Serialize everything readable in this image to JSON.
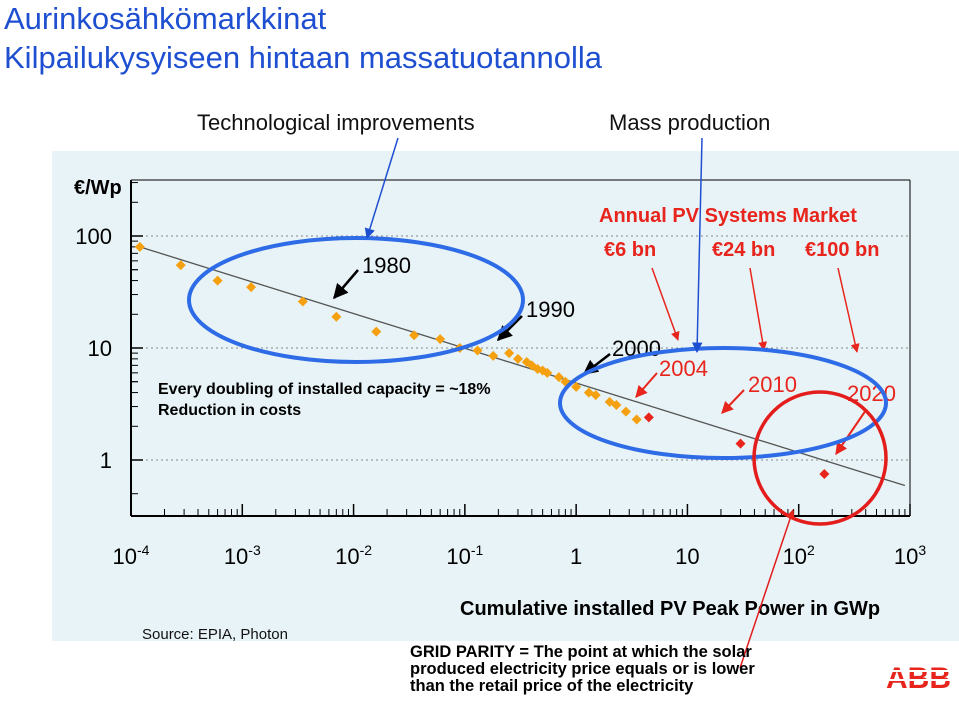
{
  "slide": {
    "title_line1": "Aurinkosähkömarkkinat",
    "title_line2": "Kilpailukysyiseen hintaan massatuotannolla",
    "callout_left": "Technological improvements",
    "callout_right": "Mass production",
    "source": "Source: EPIA, Photon",
    "grid_parity": [
      "GRID PARITY = The point at which the solar",
      "produced electricity price equals or is lower",
      "than the retail price of the electricity"
    ],
    "logo_text": "ABB"
  },
  "chart_data": {
    "type": "scatter",
    "ylabel": "€/Wp",
    "xlabel": "Cumulative installed PV Peak Power in GWp",
    "x_scale": "log",
    "y_scale": "log",
    "xlim": [
      0.0001,
      1000
    ],
    "ylim": [
      0.4,
      200
    ],
    "x_ticks": [
      "10-4",
      "10-3",
      "10-2",
      "10-1",
      "1",
      "10",
      "102",
      "103"
    ],
    "y_ticks": [
      "100",
      "10",
      "1"
    ],
    "series": [
      {
        "values": [
          {
            "x": 0.00012,
            "y": 80
          },
          {
            "x": 0.00028,
            "y": 55
          },
          {
            "x": 0.0006,
            "y": 40
          },
          {
            "x": 0.0012,
            "y": 35
          },
          {
            "x": 0.0035,
            "y": 26
          },
          {
            "x": 0.007,
            "y": 19
          },
          {
            "x": 0.016,
            "y": 14
          },
          {
            "x": 0.035,
            "y": 13
          },
          {
            "x": 0.06,
            "y": 12
          },
          {
            "x": 0.09,
            "y": 10
          },
          {
            "x": 0.13,
            "y": 9.5
          },
          {
            "x": 0.18,
            "y": 8.5
          },
          {
            "x": 0.25,
            "y": 9
          },
          {
            "x": 0.3,
            "y": 8
          },
          {
            "x": 0.36,
            "y": 7.5
          },
          {
            "x": 0.4,
            "y": 7.0
          },
          {
            "x": 0.45,
            "y": 6.5
          },
          {
            "x": 0.5,
            "y": 6.3
          },
          {
            "x": 0.55,
            "y": 6.0
          },
          {
            "x": 0.7,
            "y": 5.5
          },
          {
            "x": 0.8,
            "y": 5.0
          },
          {
            "x": 1.0,
            "y": 4.5
          },
          {
            "x": 1.3,
            "y": 4.0
          },
          {
            "x": 1.5,
            "y": 3.8
          },
          {
            "x": 2.0,
            "y": 3.3
          },
          {
            "x": 2.3,
            "y": 3.1
          },
          {
            "x": 2.8,
            "y": 2.7
          },
          {
            "x": 3.5,
            "y": 2.3
          }
        ]
      },
      {
        "values": [
          {
            "x": 4.5,
            "y": 2.4
          },
          {
            "x": 30,
            "y": 1.4
          },
          {
            "x": 170,
            "y": 0.75
          }
        ]
      }
    ],
    "year_labels": [
      "1980",
      "1990",
      "2000",
      "2004",
      "2010",
      "2020"
    ],
    "market_title": "Annual PV Systems Market",
    "market_values": [
      "€6 bn",
      "€24 bn",
      "€100 bn"
    ],
    "annotation": [
      "Every doubling of installed capacity = ~18%",
      "Reduction in costs"
    ],
    "colors": {
      "historical": "#f5a00f",
      "forecast": "#e8251c",
      "title_blue": "#1f4fd1",
      "ellipse_blue": "#2e6be6",
      "panel_bg": "#e8f3f7"
    }
  }
}
